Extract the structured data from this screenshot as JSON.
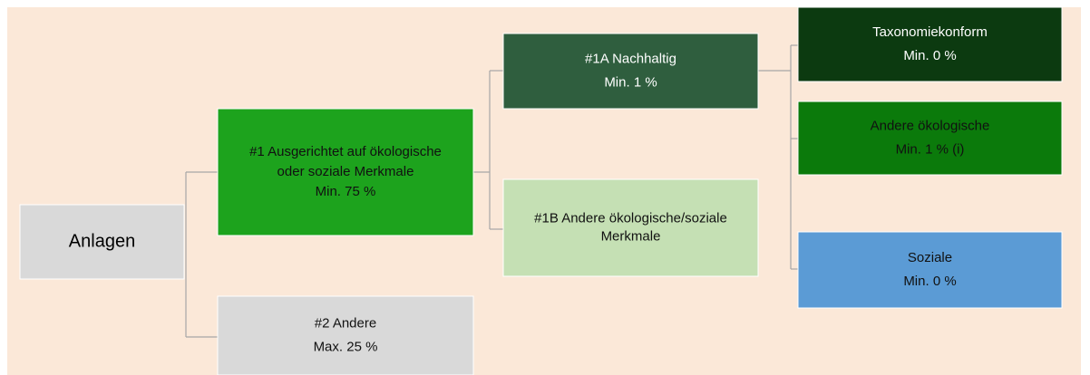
{
  "nodes": [
    {
      "id": "anlagen",
      "lines": [
        "Anlagen"
      ]
    },
    {
      "id": "n1",
      "lines": [
        "#1 Ausgerichtet auf ökologische",
        "oder soziale Merkmale",
        "Min. 75 %"
      ]
    },
    {
      "id": "n2",
      "lines": [
        "#2 Andere",
        "Max. 25 %"
      ]
    },
    {
      "id": "n1a",
      "lines": [
        "#1A Nachhaltig",
        "Min. 1 %"
      ]
    },
    {
      "id": "n1b",
      "lines": [
        "#1B Andere ökologische/soziale",
        "Merkmale"
      ]
    },
    {
      "id": "tax",
      "lines": [
        "Taxonomiekonform",
        "Min. 0 %"
      ]
    },
    {
      "id": "oek",
      "lines": [
        "Andere ökologische",
        "Min. 1 % (i)"
      ]
    },
    {
      "id": "soz",
      "lines": [
        "Soziale",
        "Min. 0 %"
      ]
    }
  ]
}
